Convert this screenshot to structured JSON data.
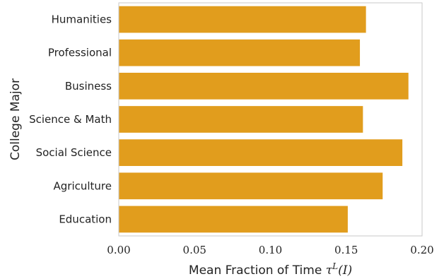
{
  "chart_data": {
    "type": "bar",
    "orientation": "horizontal",
    "categories": [
      "Humanities",
      "Professional",
      "Business",
      "Science & Math",
      "Social Science",
      "Agriculture",
      "Education"
    ],
    "values": [
      0.163,
      0.159,
      0.191,
      0.161,
      0.187,
      0.174,
      0.151
    ],
    "xlabel": {
      "text": "Mean Fraction of Time ",
      "symbol": "τ",
      "superscript": "L",
      "arg": "(I)"
    },
    "ylabel": "College Major",
    "xlim": [
      0,
      0.2
    ],
    "xticks": [
      "0.00",
      "0.05",
      "0.10",
      "0.15",
      "0.20"
    ],
    "bar_color": "#e19d1d",
    "grid": false
  }
}
